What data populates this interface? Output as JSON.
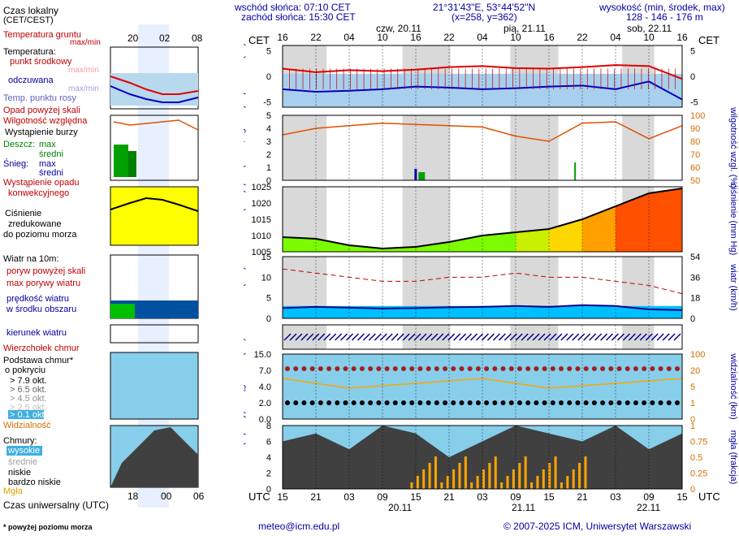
{
  "header": {
    "sunrise": "wschód słońca: 07:10 CET",
    "sunset": "zachód słońca: 15:30 CET",
    "coords": "21°31'43\"E, 53°44'52\"N",
    "grid": "(x=258, y=362)",
    "elev_label": "wysokość (min, środek, max)",
    "elev_values": "128 - 146 - 176 m"
  },
  "legend": {
    "local_time": "Czas lokalny",
    "local_time_sub": "(CET/CEST)",
    "local_ticks": [
      "20",
      "02",
      "08"
    ],
    "utc_ticks": [
      "18",
      "00",
      "06"
    ],
    "soil_temp": "Temperatura gruntu",
    "soil_maxmin": "max/min",
    "temp_title": "Temperatura:",
    "temp_mid": "punkt środkowy",
    "temp_maxmin": "max/min",
    "temp_felt": "odczuwana",
    "temp_felt_maxmin": "max/min",
    "temp_dew": "Temp. punktu rosy",
    "precip_above": "Opad powyżej skali",
    "humidity": "Wilgotność względna",
    "storm": "Wystąpienie burzy",
    "rain": "Deszcz:",
    "rain_max": "max",
    "rain_avg": "średni",
    "snow": "Śnieg:",
    "snow_max": "max",
    "snow_avg": "średni",
    "conv1": "Wystąpienie opadu",
    "conv2": "konwekcyjnego",
    "pressure1": "Ciśnienie",
    "pressure2": "zredukowane",
    "pressure3": "do poziomu morza",
    "wind_title": "Wiatr na 10m:",
    "gust_above": "poryw powyżej skali",
    "gust_max": "max porywy wiatru",
    "wind_speed1": "prędkość wiatru",
    "wind_speed2": "w środku obszaru",
    "wind_dir": "kierunek wiatru",
    "cloud_top": "Wierzchołek chmur",
    "cloud_base1": "Podstawa chmur*",
    "cloud_base2": "o pokryciu",
    "cov_79": "> 7.9 okt.",
    "cov_65": "> 6.5 okt.",
    "cov_45": "> 4.5 okt.",
    "cov_25": "> 2.5 okt.",
    "cov_01": "> 0.1 okt.",
    "visibility": "Widzialność",
    "clouds_title": "Chmury:",
    "cl_high": "wysokie",
    "cl_mid": "średnie",
    "cl_low": "niskie",
    "cl_vlow": "bardzo niskie",
    "fog": "Mgła",
    "utc_label": "Czas uniwersalny (UTC)",
    "footnote": "* powyżej poziomu morza"
  },
  "main": {
    "cet": "CET",
    "utc": "UTC",
    "days_top": [
      "czw, 20.11",
      "pią, 21.11",
      "sob, 22.11"
    ],
    "days_bottom": [
      "20.11",
      "21.11",
      "22.11"
    ],
    "cet_ticks": [
      "16",
      "22",
      "04",
      "10",
      "16",
      "22",
      "04",
      "10",
      "16",
      "22",
      "04",
      "10",
      "16"
    ],
    "utc_ticks": [
      "15",
      "21",
      "03",
      "09",
      "15",
      "21",
      "03",
      "09",
      "15",
      "21",
      "03",
      "09",
      "15"
    ],
    "ylabels": {
      "temp": "temperatura (°C)",
      "precip": "opad (mm/h, kg/m²/h)",
      "hum": "wilgotność wzgl. (%)",
      "pres": "ciśnienie (hPa)",
      "pres_r": "ciśnienie (mm Hg)",
      "wind": "wiatr (m/s)",
      "wind_r": "wiatr (km/h)",
      "cloudbase": "pion. rozciągł. chm. (km)",
      "vis": "widzialność (km)",
      "cover": "zachmurzenie (oktanty)",
      "fog": "mgła (frakcja)"
    }
  },
  "footer": {
    "email": "meteo@icm.edu.pl",
    "copyright": "© 2007-2025 ICM, Uniwersytet Warszawski"
  },
  "colors": {
    "night": "#d9d9d9",
    "sky": "#87ceeb",
    "temp_red": "#e00000",
    "temp_blue": "#0000c0",
    "hum": "#e05000",
    "pressure_low": "#7cfc00",
    "pressure_high": "#ff4000",
    "wind_dark": "#00008b",
    "orange": "#ffa500"
  },
  "chart_data": [
    {
      "type": "line",
      "name": "temperature",
      "x_hours_from_start": [
        0,
        6,
        12,
        18,
        24,
        30,
        36,
        42,
        48,
        54,
        60,
        66,
        72
      ],
      "series": [
        {
          "values": [
            1.5,
            0.8,
            1.2,
            1.0,
            1.3,
            1.8,
            2.0,
            1.6,
            1.5,
            1.8,
            2.2,
            2.0,
            -0.5
          ]
        },
        {
          "values": [
            -2.5,
            -3.0,
            -2.8,
            -2.5,
            -2.0,
            -2.2,
            -2.5,
            -2.3,
            -2.0,
            -1.8,
            -2.5,
            -1.0,
            -4.5
          ]
        }
      ],
      "ylim": [
        -6,
        6
      ]
    },
    {
      "type": "line",
      "name": "humidity",
      "series": [
        {
          "values": [
            85,
            90,
            92,
            94,
            93,
            92,
            91,
            84,
            80,
            94,
            95,
            82,
            92
          ]
        }
      ],
      "ylim": [
        50,
        100
      ]
    },
    {
      "type": "area",
      "name": "pressure",
      "series": [
        {
          "values": [
            1009.5,
            1009,
            1007,
            1006,
            1006.5,
            1008,
            1010,
            1011,
            1012,
            1015,
            1019,
            1023,
            1024.5
          ]
        }
      ],
      "ylim": [
        1005,
        1025
      ]
    },
    {
      "type": "line",
      "name": "wind",
      "series": [
        {
          "values": [
            12,
            11,
            10,
            9,
            9,
            10,
            10,
            11,
            10,
            10,
            9,
            8,
            6
          ]
        },
        {
          "values": [
            2.5,
            2.8,
            2.6,
            2.4,
            2.5,
            2.7,
            2.8,
            3.0,
            2.8,
            3.2,
            3.0,
            2.2,
            2.0
          ]
        }
      ],
      "ylim": [
        0,
        15
      ]
    }
  ]
}
